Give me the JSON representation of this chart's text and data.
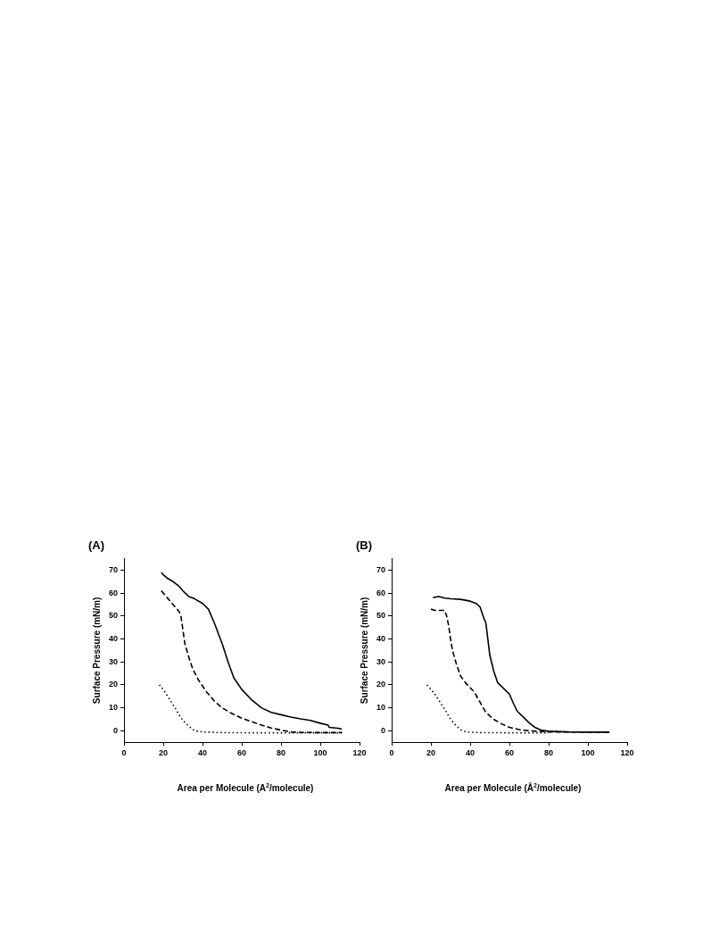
{
  "chart_data": [
    {
      "type": "line",
      "title": "(A)",
      "xlabel": "Area per Molecule (A$^{2}$/molecule)",
      "ylabel": "Surface Pressure (mN/m)",
      "xlim": [
        0,
        120
      ],
      "ylim": [
        -5,
        75
      ],
      "xticks": [
        0,
        20,
        40,
        60,
        80,
        100,
        120
      ],
      "yticks": [
        0,
        10,
        20,
        30,
        40,
        50,
        60,
        70
      ],
      "grid": false,
      "legend": false,
      "marker": "none",
      "series": [
        {
          "color": "#000000",
          "line_style": "solid",
          "x": [
            19,
            20,
            22,
            25,
            28,
            30,
            33,
            36,
            40,
            43,
            46,
            50,
            53,
            56,
            60,
            65,
            70,
            75,
            80,
            85,
            90,
            95,
            100,
            104,
            104.5,
            108,
            111
          ],
          "values": [
            69,
            68,
            66.5,
            65,
            63,
            61,
            58.5,
            57.5,
            55.5,
            53,
            47,
            38,
            30,
            23,
            18,
            13.5,
            10,
            8,
            7,
            6,
            5.2,
            4.5,
            3.3,
            2.5,
            1.5,
            1.2,
            0.8
          ]
        },
        {
          "color": "#000000",
          "line_style": "dashed",
          "x": [
            19,
            22,
            25,
            28,
            29,
            30,
            31,
            33,
            35,
            38,
            42,
            46,
            50,
            55,
            60,
            65,
            70,
            75,
            80,
            85,
            90,
            100,
            111
          ],
          "values": [
            61,
            58,
            55,
            52,
            50,
            44,
            38,
            32,
            27,
            22,
            17,
            13,
            10,
            7.5,
            5.5,
            4,
            2.5,
            1.2,
            0.3,
            -0.5,
            -0.7,
            -0.8,
            -0.8
          ]
        },
        {
          "color": "#000000",
          "line_style": "dotted",
          "x": [
            18,
            20,
            23,
            26,
            28,
            30,
            33,
            36,
            40,
            50,
            70,
            111
          ],
          "values": [
            20,
            18,
            14,
            10,
            7,
            4.5,
            2,
            0,
            -0.5,
            -0.8,
            -0.9,
            -0.9
          ]
        }
      ]
    },
    {
      "type": "line",
      "title": "(B)",
      "xlabel": "Area per Molecule (Å$^{2}$/molecule)",
      "ylabel": "Surface Pressure (mN/m)",
      "xlim": [
        0,
        120
      ],
      "ylim": [
        -5,
        75
      ],
      "xticks": [
        0,
        20,
        40,
        60,
        80,
        100,
        120
      ],
      "yticks": [
        0,
        10,
        20,
        30,
        40,
        50,
        60,
        70
      ],
      "grid": false,
      "legend": false,
      "marker": "none",
      "series": [
        {
          "color": "#000000",
          "line_style": "solid",
          "x": [
            21,
            24,
            27,
            30,
            35,
            40,
            43,
            45,
            47,
            48,
            49,
            50,
            52,
            54,
            57,
            60,
            62,
            64,
            67,
            70,
            73,
            76,
            80,
            90,
            100,
            111
          ],
          "values": [
            58,
            58.5,
            57.8,
            57.5,
            57.3,
            56.5,
            55.5,
            54,
            49,
            47,
            40,
            33,
            26,
            21,
            18.5,
            16,
            12,
            8.5,
            6,
            3.5,
            1.5,
            0.3,
            -0.2,
            -0.5,
            -0.6,
            -0.6
          ]
        },
        {
          "color": "#000000",
          "line_style": "dashed",
          "x": [
            20,
            22,
            25,
            27,
            28,
            29,
            30,
            31,
            33,
            35,
            38,
            42,
            45,
            48,
            52,
            56,
            60,
            65,
            70,
            80,
            111
          ],
          "values": [
            53,
            52.5,
            52.5,
            52.5,
            50,
            46,
            40,
            35,
            29,
            24,
            20.5,
            17,
            12.5,
            8,
            5,
            3,
            1.5,
            0.5,
            0,
            -0.5,
            -0.6
          ]
        },
        {
          "color": "#000000",
          "line_style": "dotted",
          "x": [
            18,
            20,
            22,
            25,
            28,
            30,
            32,
            35,
            38,
            45,
            60,
            80
          ],
          "values": [
            20,
            18,
            16,
            12,
            8,
            5,
            3,
            0.5,
            -0.5,
            -0.8,
            -0.9,
            -0.9
          ]
        }
      ]
    }
  ]
}
